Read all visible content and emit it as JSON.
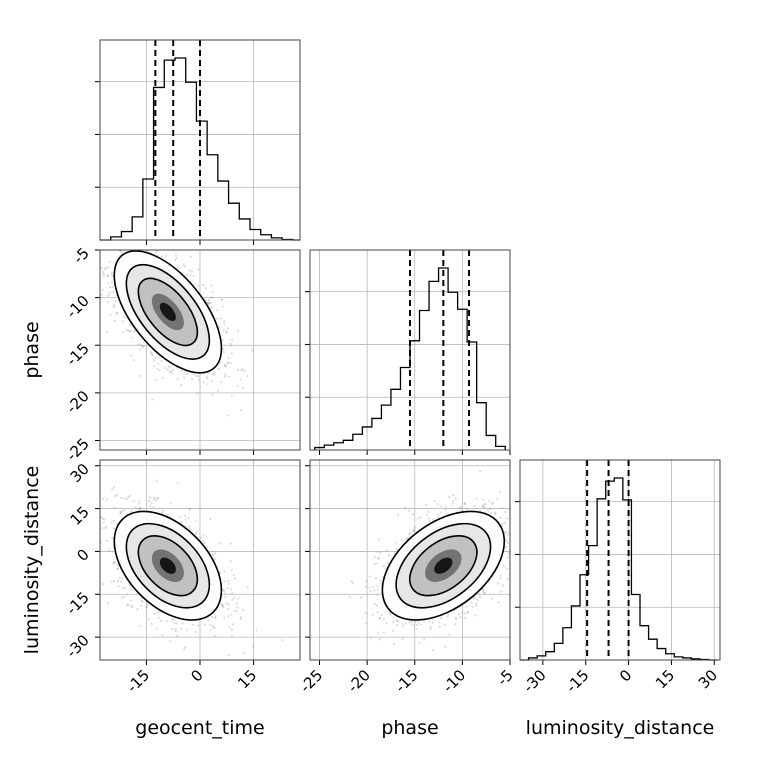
{
  "chart_data": {
    "type": "corner",
    "params": [
      "geocent_time",
      "phase",
      "luminosity_distance"
    ],
    "ranges": {
      "geocent_time": [
        -28,
        28
      ],
      "phase": [
        -26,
        -5
      ],
      "luminosity_distance": [
        -38,
        32
      ]
    },
    "ticks": {
      "geocent_time": [
        -15,
        0,
        15
      ],
      "phase": [
        -25,
        -20,
        -15,
        -10,
        -5
      ],
      "luminosity_distance": [
        -30,
        -15,
        0,
        15,
        30
      ]
    },
    "quantiles": {
      "geocent_time": [
        -12.5,
        -7.5,
        0
      ],
      "phase": [
        -15.5,
        -12.0,
        -9.3
      ],
      "luminosity_distance": [
        -14.5,
        -7.0,
        0.0
      ]
    },
    "grid": true,
    "marginals": {
      "geocent_time": {
        "bin_edges": [
          -28,
          -25,
          -22,
          -19,
          -16,
          -13,
          -10,
          -7,
          -4,
          -1,
          2,
          5,
          8,
          11,
          14,
          17,
          20,
          23,
          26,
          28
        ],
        "counts": [
          0,
          0.3,
          0.8,
          2.2,
          5.8,
          14.5,
          17.1,
          17.3,
          15.0,
          11.3,
          8.1,
          5.6,
          3.5,
          2.0,
          1.0,
          0.5,
          0.2,
          0.05,
          0
        ]
      },
      "phase": {
        "bin_edges": [
          -25.5,
          -24.5,
          -23.5,
          -22.5,
          -21.5,
          -20.5,
          -19.5,
          -18.5,
          -17.5,
          -16.5,
          -15.5,
          -14.5,
          -13.5,
          -12.5,
          -11.5,
          -10.5,
          -9.5,
          -8.5,
          -7.5,
          -6.5,
          -5.5
        ],
        "counts": [
          0.2,
          0.4,
          0.6,
          0.8,
          1.3,
          1.9,
          2.6,
          3.7,
          5.0,
          6.8,
          9.0,
          11.5,
          13.9,
          15.0,
          13.0,
          11.6,
          8.9,
          3.9,
          1.2,
          0.3
        ]
      },
      "luminosity_distance": {
        "bin_edges": [
          -38,
          -35,
          -32,
          -29,
          -26,
          -23,
          -20,
          -17,
          -14,
          -11,
          -8,
          -5,
          -2,
          1,
          4,
          7,
          10,
          13,
          16,
          19,
          22,
          25,
          28,
          31
        ],
        "counts": [
          0,
          0.2,
          0.4,
          0.8,
          1.6,
          3.1,
          5.2,
          8.2,
          11.0,
          15.5,
          17.2,
          17.5,
          15.4,
          6.3,
          3.3,
          2.0,
          1.1,
          0.6,
          0.3,
          0.2,
          0.1,
          0.05,
          0
        ]
      }
    },
    "joint": [
      {
        "x": "geocent_time",
        "y": "phase",
        "center": [
          -9,
          -11.5
        ],
        "sd": [
          7.5,
          3.2
        ],
        "rho": -0.6
      },
      {
        "x": "geocent_time",
        "y": "luminosity_distance",
        "center": [
          -9,
          -5
        ],
        "sd": [
          7.5,
          9.5
        ],
        "rho": -0.45
      },
      {
        "x": "phase",
        "y": "luminosity_distance",
        "center": [
          -12,
          -5
        ],
        "sd": [
          3.2,
          9.5
        ],
        "rho": 0.45
      }
    ]
  }
}
